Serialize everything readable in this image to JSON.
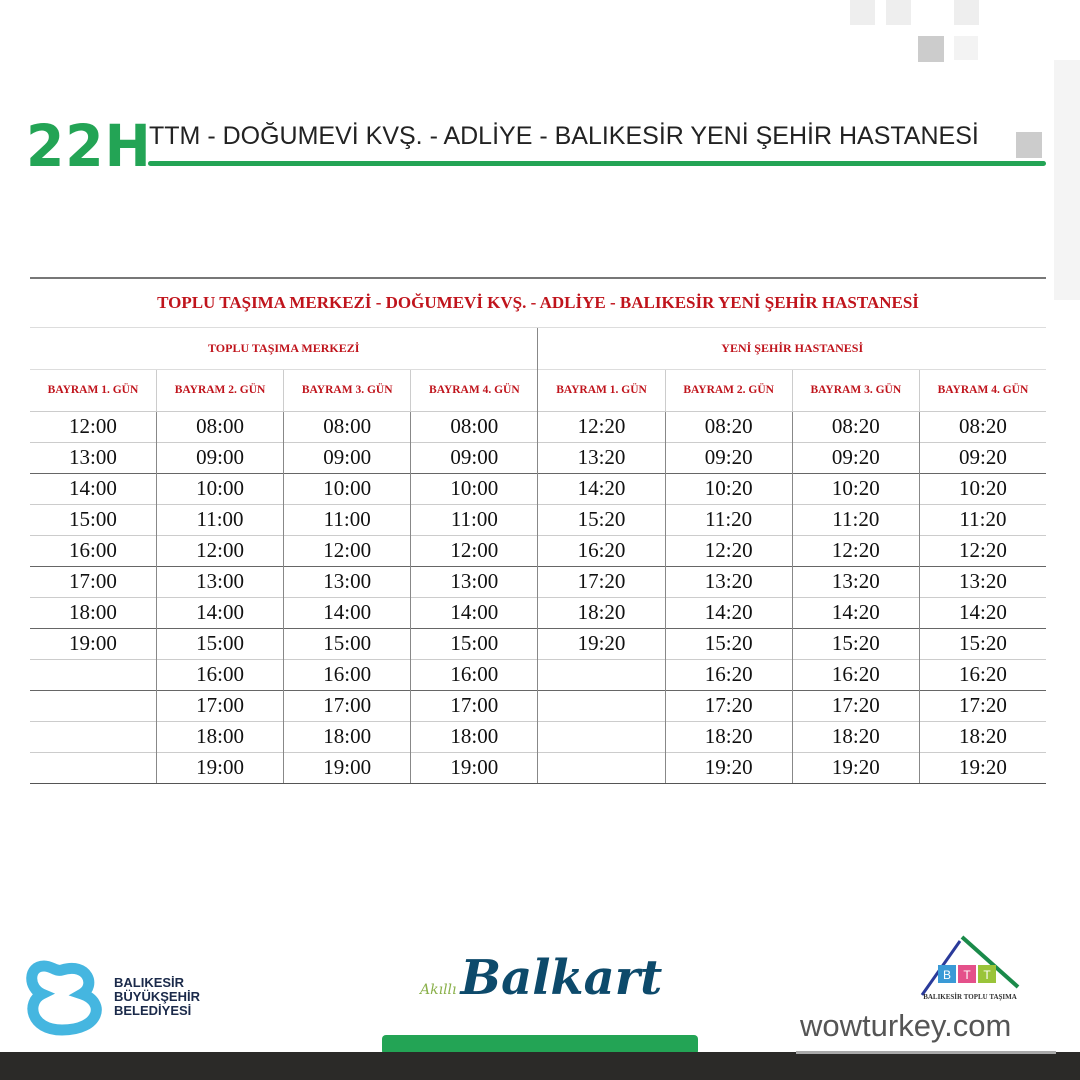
{
  "header": {
    "route": "22H",
    "title": "TTM - DOĞUMEVİ KVŞ. - ADLİYE - BALIKESİR YENİ ŞEHİR HASTANESİ",
    "accent": "#23a455"
  },
  "table": {
    "title": "TOPLU TAŞIMA MERKEZİ - DOĞUMEVİ KVŞ. - ADLİYE - BALIKESİR YENİ ŞEHİR HASTANESİ",
    "groups": [
      "TOPLU TAŞIMA MERKEZİ",
      "YENİ ŞEHİR HASTANESİ"
    ],
    "columns": [
      "BAYRAM 1. GÜN",
      "BAYRAM  2. GÜN",
      "BAYRAM 3. GÜN",
      "BAYRAM 4. GÜN",
      "BAYRAM 1. GÜN",
      "BAYRAM 2. GÜN",
      "BAYRAM 3. GÜN",
      "BAYRAM 4. GÜN"
    ],
    "rows": [
      [
        "12:00",
        "08:00",
        "08:00",
        "08:00",
        "12:20",
        "08:20",
        "08:20",
        "08:20"
      ],
      [
        "13:00",
        "09:00",
        "09:00",
        "09:00",
        "13:20",
        "09:20",
        "09:20",
        "09:20"
      ],
      [
        "14:00",
        "10:00",
        "10:00",
        "10:00",
        "14:20",
        "10:20",
        "10:20",
        "10:20"
      ],
      [
        "15:00",
        "11:00",
        "11:00",
        "11:00",
        "15:20",
        "11:20",
        "11:20",
        "11:20"
      ],
      [
        "16:00",
        "12:00",
        "12:00",
        "12:00",
        "16:20",
        "12:20",
        "12:20",
        "12:20"
      ],
      [
        "17:00",
        "13:00",
        "13:00",
        "13:00",
        "17:20",
        "13:20",
        "13:20",
        "13:20"
      ],
      [
        "18:00",
        "14:00",
        "14:00",
        "14:00",
        "18:20",
        "14:20",
        "14:20",
        "14:20"
      ],
      [
        "19:00",
        "15:00",
        "15:00",
        "15:00",
        "19:20",
        "15:20",
        "15:20",
        "15:20"
      ],
      [
        "",
        "16:00",
        "16:00",
        "16:00",
        "",
        "16:20",
        "16:20",
        "16:20"
      ],
      [
        "",
        "17:00",
        "17:00",
        "17:00",
        "",
        "17:20",
        "17:20",
        "17:20"
      ],
      [
        "",
        "18:00",
        "18:00",
        "18:00",
        "",
        "18:20",
        "18:20",
        "18:20"
      ],
      [
        "",
        "19:00",
        "19:00",
        "19:00",
        "",
        "19:20",
        "19:20",
        "19:20"
      ]
    ],
    "header_color": "#c0141c"
  },
  "footer": {
    "bbb_logo": "BALIKESİR BÜYÜKŞEHİR BELEDİYESİ",
    "bbb_lines": [
      "BALIKESİR",
      "BÜYÜKŞEHİR",
      "BELEDİYESİ"
    ],
    "balkart_small": "Akıllı",
    "balkart": "Balkart",
    "btt_letters": [
      "B",
      "T",
      "T"
    ],
    "btt_caption": "BALIKESİR TOPLU TAŞIMA",
    "watermark": "wowturkey.com"
  }
}
